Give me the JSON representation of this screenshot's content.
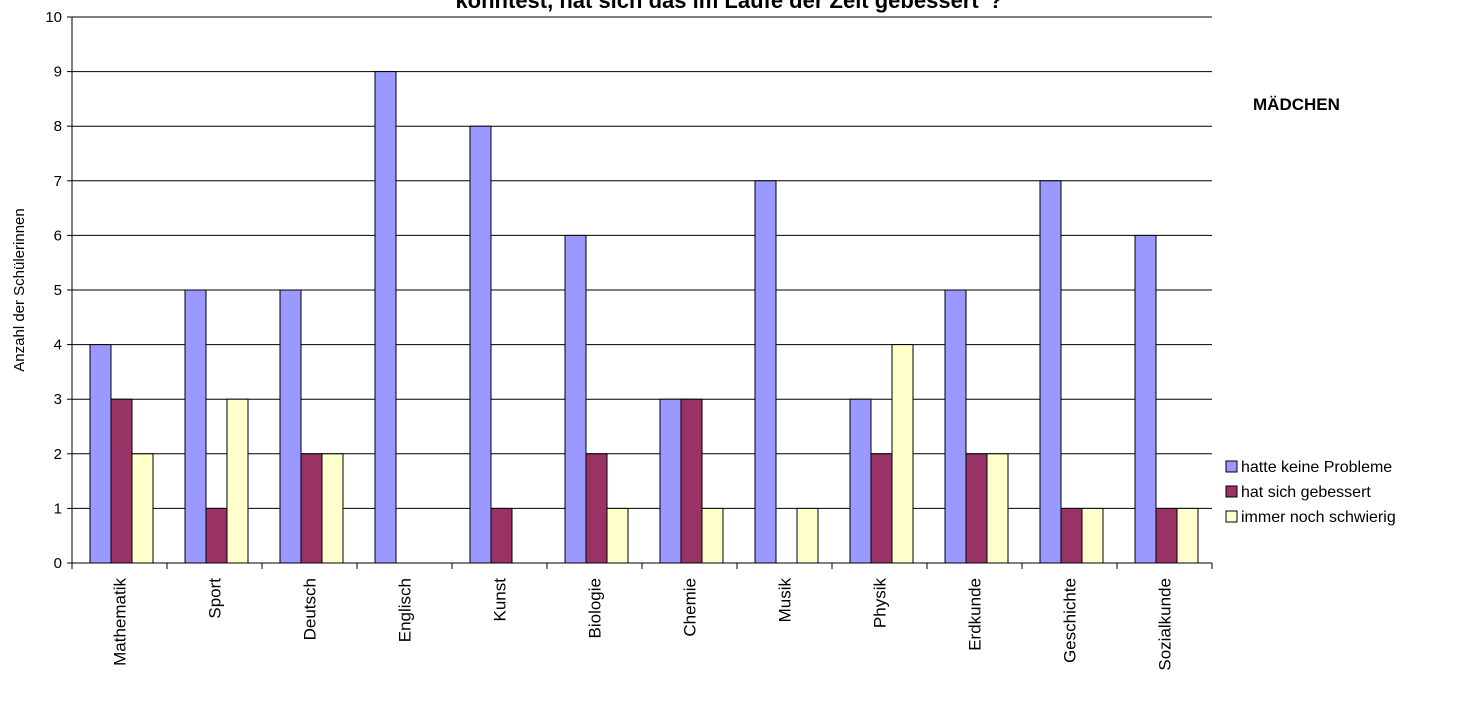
{
  "chart_data": {
    "type": "bar",
    "title": "konntest, hat sich das im Laufe der Zeit gebessert\"?",
    "ylabel": "Anzahl der Schülerinnen",
    "xlabel": "",
    "side_label": "MÄDCHEN",
    "ylim": [
      0,
      10
    ],
    "yticks": [
      0,
      1,
      2,
      3,
      4,
      5,
      6,
      7,
      8,
      9,
      10
    ],
    "grid": true,
    "legend_position": "right",
    "categories": [
      "Mathematik",
      "Sport",
      "Deutsch",
      "Englisch",
      "Kunst",
      "Biologie",
      "Chemie",
      "Musik",
      "Physik",
      "Erdkunde",
      "Geschichte",
      "Sozialkunde"
    ],
    "series": [
      {
        "name": "hatte keine Probleme",
        "color": "#9999ff",
        "values": [
          4,
          5,
          5,
          9,
          8,
          6,
          3,
          7,
          3,
          5,
          7,
          6
        ]
      },
      {
        "name": "hat sich gebessert",
        "color": "#993366",
        "values": [
          3,
          1,
          2,
          0,
          1,
          2,
          3,
          0,
          2,
          2,
          1,
          1
        ]
      },
      {
        "name": "immer noch schwierig",
        "color": "#ffffcc",
        "values": [
          2,
          3,
          2,
          0,
          0,
          1,
          1,
          1,
          4,
          2,
          1,
          1
        ]
      }
    ]
  }
}
